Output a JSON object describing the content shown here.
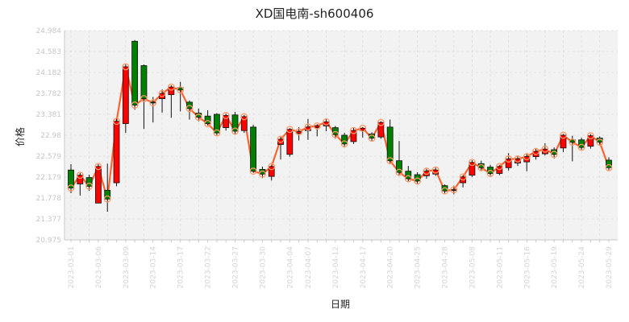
{
  "chart_data": {
    "type": "candlestick",
    "title": "XD国电南-sh600406",
    "xlabel": "日期",
    "ylabel": "价格",
    "ylim": [
      20.975,
      24.584
    ],
    "yticks": [
      "20.975",
      "21.377",
      "21.778",
      "22.179",
      "22.579",
      "22.98",
      "23.381",
      "23.782",
      "24.182",
      "24.583",
      "24.984"
    ],
    "grid": true,
    "colors": {
      "up": "#ff0000",
      "down": "#008000",
      "line": "#ff6430",
      "marker": "#ff9966",
      "grid": "#dcdcdc"
    },
    "candles": [
      {
        "date": "2023-03-01",
        "open": 22.18,
        "close": 21.87,
        "high": 22.28,
        "low": 21.78
      },
      {
        "date": "2023-03-02",
        "open": 21.94,
        "close": 22.09,
        "high": 22.13,
        "low": 21.74
      },
      {
        "date": "2023-03-03",
        "open": 22.05,
        "close": 21.9,
        "high": 22.1,
        "low": 21.82
      },
      {
        "date": "2023-03-06",
        "open": 21.61,
        "close": 22.24,
        "high": 22.28,
        "low": 21.61
      },
      {
        "date": "2023-03-07",
        "open": 21.83,
        "close": 21.68,
        "high": 22.29,
        "low": 21.46
      },
      {
        "date": "2023-03-08",
        "open": 21.96,
        "close": 23.02,
        "high": 23.08,
        "low": 21.9
      },
      {
        "date": "2023-03-09",
        "open": 22.98,
        "close": 23.96,
        "high": 24.0,
        "low": 22.82
      },
      {
        "date": "2023-03-10",
        "open": 24.4,
        "close": 23.3,
        "high": 24.42,
        "low": 23.22
      },
      {
        "date": "2023-03-13",
        "open": 23.98,
        "close": 23.41,
        "high": 24.0,
        "low": 22.89
      },
      {
        "date": "2023-03-14",
        "open": 23.35,
        "close": 23.34,
        "high": 23.44,
        "low": 23.0
      },
      {
        "date": "2023-03-15",
        "open": 23.41,
        "close": 23.5,
        "high": 23.57,
        "low": 23.17
      },
      {
        "date": "2023-03-16",
        "open": 23.48,
        "close": 23.61,
        "high": 23.64,
        "low": 23.08
      },
      {
        "date": "2023-03-17",
        "open": 23.6,
        "close": 23.56,
        "high": 23.7,
        "low": 23.19
      },
      {
        "date": "2023-03-20",
        "open": 23.35,
        "close": 23.24,
        "high": 23.38,
        "low": 23.05
      },
      {
        "date": "2023-03-21",
        "open": 23.16,
        "close": 23.09,
        "high": 23.24,
        "low": 23.02
      },
      {
        "date": "2023-03-22",
        "open": 23.11,
        "close": 22.98,
        "high": 23.21,
        "low": 22.95
      },
      {
        "date": "2023-03-23",
        "open": 23.14,
        "close": 22.82,
        "high": 23.16,
        "low": 22.78
      },
      {
        "date": "2023-03-24",
        "open": 22.91,
        "close": 23.12,
        "high": 23.15,
        "low": 22.86
      },
      {
        "date": "2023-03-27",
        "open": 23.13,
        "close": 22.85,
        "high": 23.18,
        "low": 22.8
      },
      {
        "date": "2023-03-28",
        "open": 22.86,
        "close": 23.1,
        "high": 23.13,
        "low": 22.82
      },
      {
        "date": "2023-03-29",
        "open": 22.92,
        "close": 22.16,
        "high": 22.96,
        "low": 22.13
      },
      {
        "date": "2023-03-30",
        "open": 22.19,
        "close": 22.11,
        "high": 22.24,
        "low": 22.04
      },
      {
        "date": "2023-03-31",
        "open": 22.07,
        "close": 22.24,
        "high": 22.26,
        "low": 22.0
      },
      {
        "date": "2023-04-03",
        "open": 22.62,
        "close": 22.71,
        "high": 22.75,
        "low": 22.36
      },
      {
        "date": "2023-04-04",
        "open": 22.45,
        "close": 22.88,
        "high": 22.9,
        "low": 22.41
      },
      {
        "date": "2023-04-06",
        "open": 22.81,
        "close": 22.84,
        "high": 22.92,
        "low": 22.69
      },
      {
        "date": "2023-04-07",
        "open": 22.86,
        "close": 22.92,
        "high": 23.06,
        "low": 22.7
      },
      {
        "date": "2023-04-10",
        "open": 22.91,
        "close": 22.94,
        "high": 22.97,
        "low": 22.76
      },
      {
        "date": "2023-04-11",
        "open": 22.94,
        "close": 23.01,
        "high": 23.07,
        "low": 22.85
      },
      {
        "date": "2023-04-12",
        "open": 22.91,
        "close": 22.79,
        "high": 22.94,
        "low": 22.72
      },
      {
        "date": "2023-04-13",
        "open": 22.78,
        "close": 22.63,
        "high": 22.82,
        "low": 22.58
      },
      {
        "date": "2023-04-14",
        "open": 22.67,
        "close": 22.86,
        "high": 22.91,
        "low": 22.63
      },
      {
        "date": "2023-04-17",
        "open": 22.86,
        "close": 22.9,
        "high": 22.92,
        "low": 22.74
      },
      {
        "date": "2023-04-18",
        "open": 22.8,
        "close": 22.73,
        "high": 22.83,
        "low": 22.68
      },
      {
        "date": "2023-04-19",
        "open": 22.75,
        "close": 23.0,
        "high": 23.02,
        "low": 22.72
      },
      {
        "date": "2023-04-20",
        "open": 22.92,
        "close": 22.34,
        "high": 23.05,
        "low": 22.3
      },
      {
        "date": "2023-04-21",
        "open": 22.34,
        "close": 22.14,
        "high": 22.68,
        "low": 22.08
      },
      {
        "date": "2023-04-24",
        "open": 22.16,
        "close": 22.03,
        "high": 22.25,
        "low": 21.98
      },
      {
        "date": "2023-04-25",
        "open": 22.1,
        "close": 21.99,
        "high": 22.14,
        "low": 21.93
      },
      {
        "date": "2023-04-26",
        "open": 22.08,
        "close": 22.16,
        "high": 22.2,
        "low": 22.03
      },
      {
        "date": "2023-04-27",
        "open": 22.11,
        "close": 22.18,
        "high": 22.22,
        "low": 22.08
      },
      {
        "date": "2023-04-28",
        "open": 21.91,
        "close": 21.82,
        "high": 21.93,
        "low": 21.78
      },
      {
        "date": "2023-05-04",
        "open": 21.83,
        "close": 21.84,
        "high": 21.91,
        "low": 21.76
      },
      {
        "date": "2023-05-05",
        "open": 21.96,
        "close": 22.06,
        "high": 22.09,
        "low": 21.88
      },
      {
        "date": "2023-05-08",
        "open": 22.09,
        "close": 22.31,
        "high": 22.35,
        "low": 22.06
      },
      {
        "date": "2023-05-09",
        "open": 22.29,
        "close": 22.22,
        "high": 22.34,
        "low": 22.16
      },
      {
        "date": "2023-05-10",
        "open": 22.23,
        "close": 22.12,
        "high": 22.27,
        "low": 22.08
      },
      {
        "date": "2023-05-11",
        "open": 22.12,
        "close": 22.24,
        "high": 22.26,
        "low": 22.09
      },
      {
        "date": "2023-05-12",
        "open": 22.22,
        "close": 22.37,
        "high": 22.47,
        "low": 22.17
      },
      {
        "date": "2023-05-15",
        "open": 22.3,
        "close": 22.37,
        "high": 22.42,
        "low": 22.25
      },
      {
        "date": "2023-05-16",
        "open": 22.32,
        "close": 22.41,
        "high": 22.46,
        "low": 22.16
      },
      {
        "date": "2023-05-17",
        "open": 22.41,
        "close": 22.5,
        "high": 22.55,
        "low": 22.36
      },
      {
        "date": "2023-05-18",
        "open": 22.46,
        "close": 22.54,
        "high": 22.64,
        "low": 22.43
      },
      {
        "date": "2023-05-19",
        "open": 22.53,
        "close": 22.45,
        "high": 22.57,
        "low": 22.38
      },
      {
        "date": "2023-05-22",
        "open": 22.56,
        "close": 22.78,
        "high": 22.8,
        "low": 22.49
      },
      {
        "date": "2023-05-23",
        "open": 22.7,
        "close": 22.66,
        "high": 22.77,
        "low": 22.33
      },
      {
        "date": "2023-05-24",
        "open": 22.7,
        "close": 22.57,
        "high": 22.74,
        "low": 22.53
      },
      {
        "date": "2023-05-25",
        "open": 22.59,
        "close": 22.77,
        "high": 22.8,
        "low": 22.55
      },
      {
        "date": "2023-05-26",
        "open": 22.73,
        "close": 22.66,
        "high": 22.76,
        "low": 22.6
      },
      {
        "date": "2023-05-29",
        "open": 22.35,
        "close": 22.22,
        "high": 22.4,
        "low": 22.18
      }
    ],
    "xticks": [
      "2023-03-01",
      "2023-03-06",
      "2023-03-09",
      "2023-03-14",
      "2023-03-17",
      "2023-03-22",
      "2023-03-27",
      "2023-03-30",
      "2023-04-04",
      "2023-04-07",
      "2023-04-12",
      "2023-04-17",
      "2023-04-20",
      "2023-04-25",
      "2023-04-28",
      "2023-05-08",
      "2023-05-11",
      "2023-05-16",
      "2023-05-19",
      "2023-05-24",
      "2023-05-29"
    ]
  }
}
